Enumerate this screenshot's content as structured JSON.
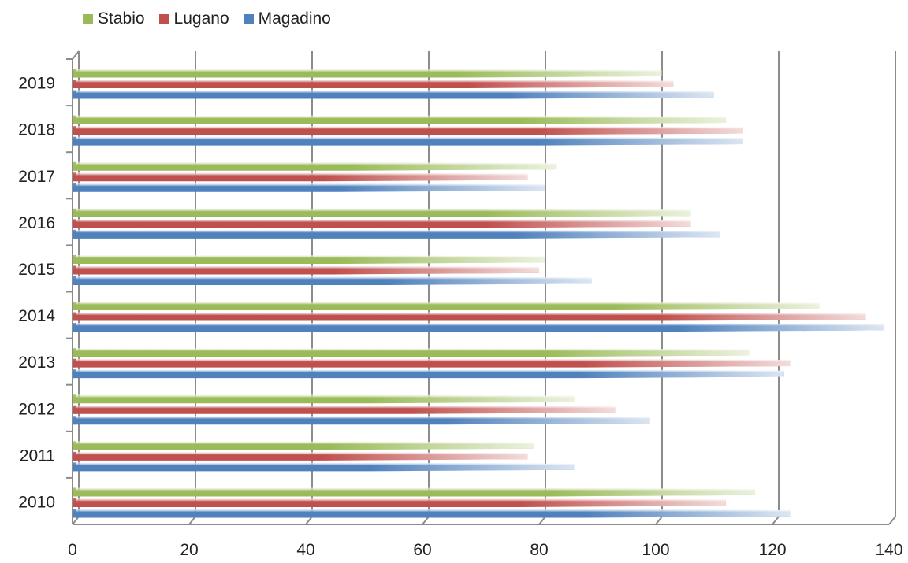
{
  "chart_data": {
    "type": "bar",
    "orientation": "horizontal",
    "categories": [
      "2010",
      "2011",
      "2012",
      "2013",
      "2014",
      "2015",
      "2016",
      "2017",
      "2018",
      "2019"
    ],
    "series": [
      {
        "name": "Stabio",
        "color": "#9BBB59",
        "values": [
          117,
          79,
          86,
          116,
          128,
          81,
          106,
          83,
          112,
          101
        ]
      },
      {
        "name": "Lugano",
        "color": "#C0504D",
        "values": [
          112,
          78,
          93,
          123,
          136,
          80,
          106,
          78,
          115,
          103
        ]
      },
      {
        "name": "Magadino",
        "color": "#4F81BD",
        "values": [
          123,
          86,
          99,
          122,
          139,
          89,
          111,
          81,
          115,
          110
        ]
      }
    ],
    "xlim": [
      0,
      140
    ],
    "xticks": [
      0,
      20,
      40,
      60,
      80,
      100,
      120,
      140
    ],
    "grid": true,
    "legend_position": "top-left"
  }
}
